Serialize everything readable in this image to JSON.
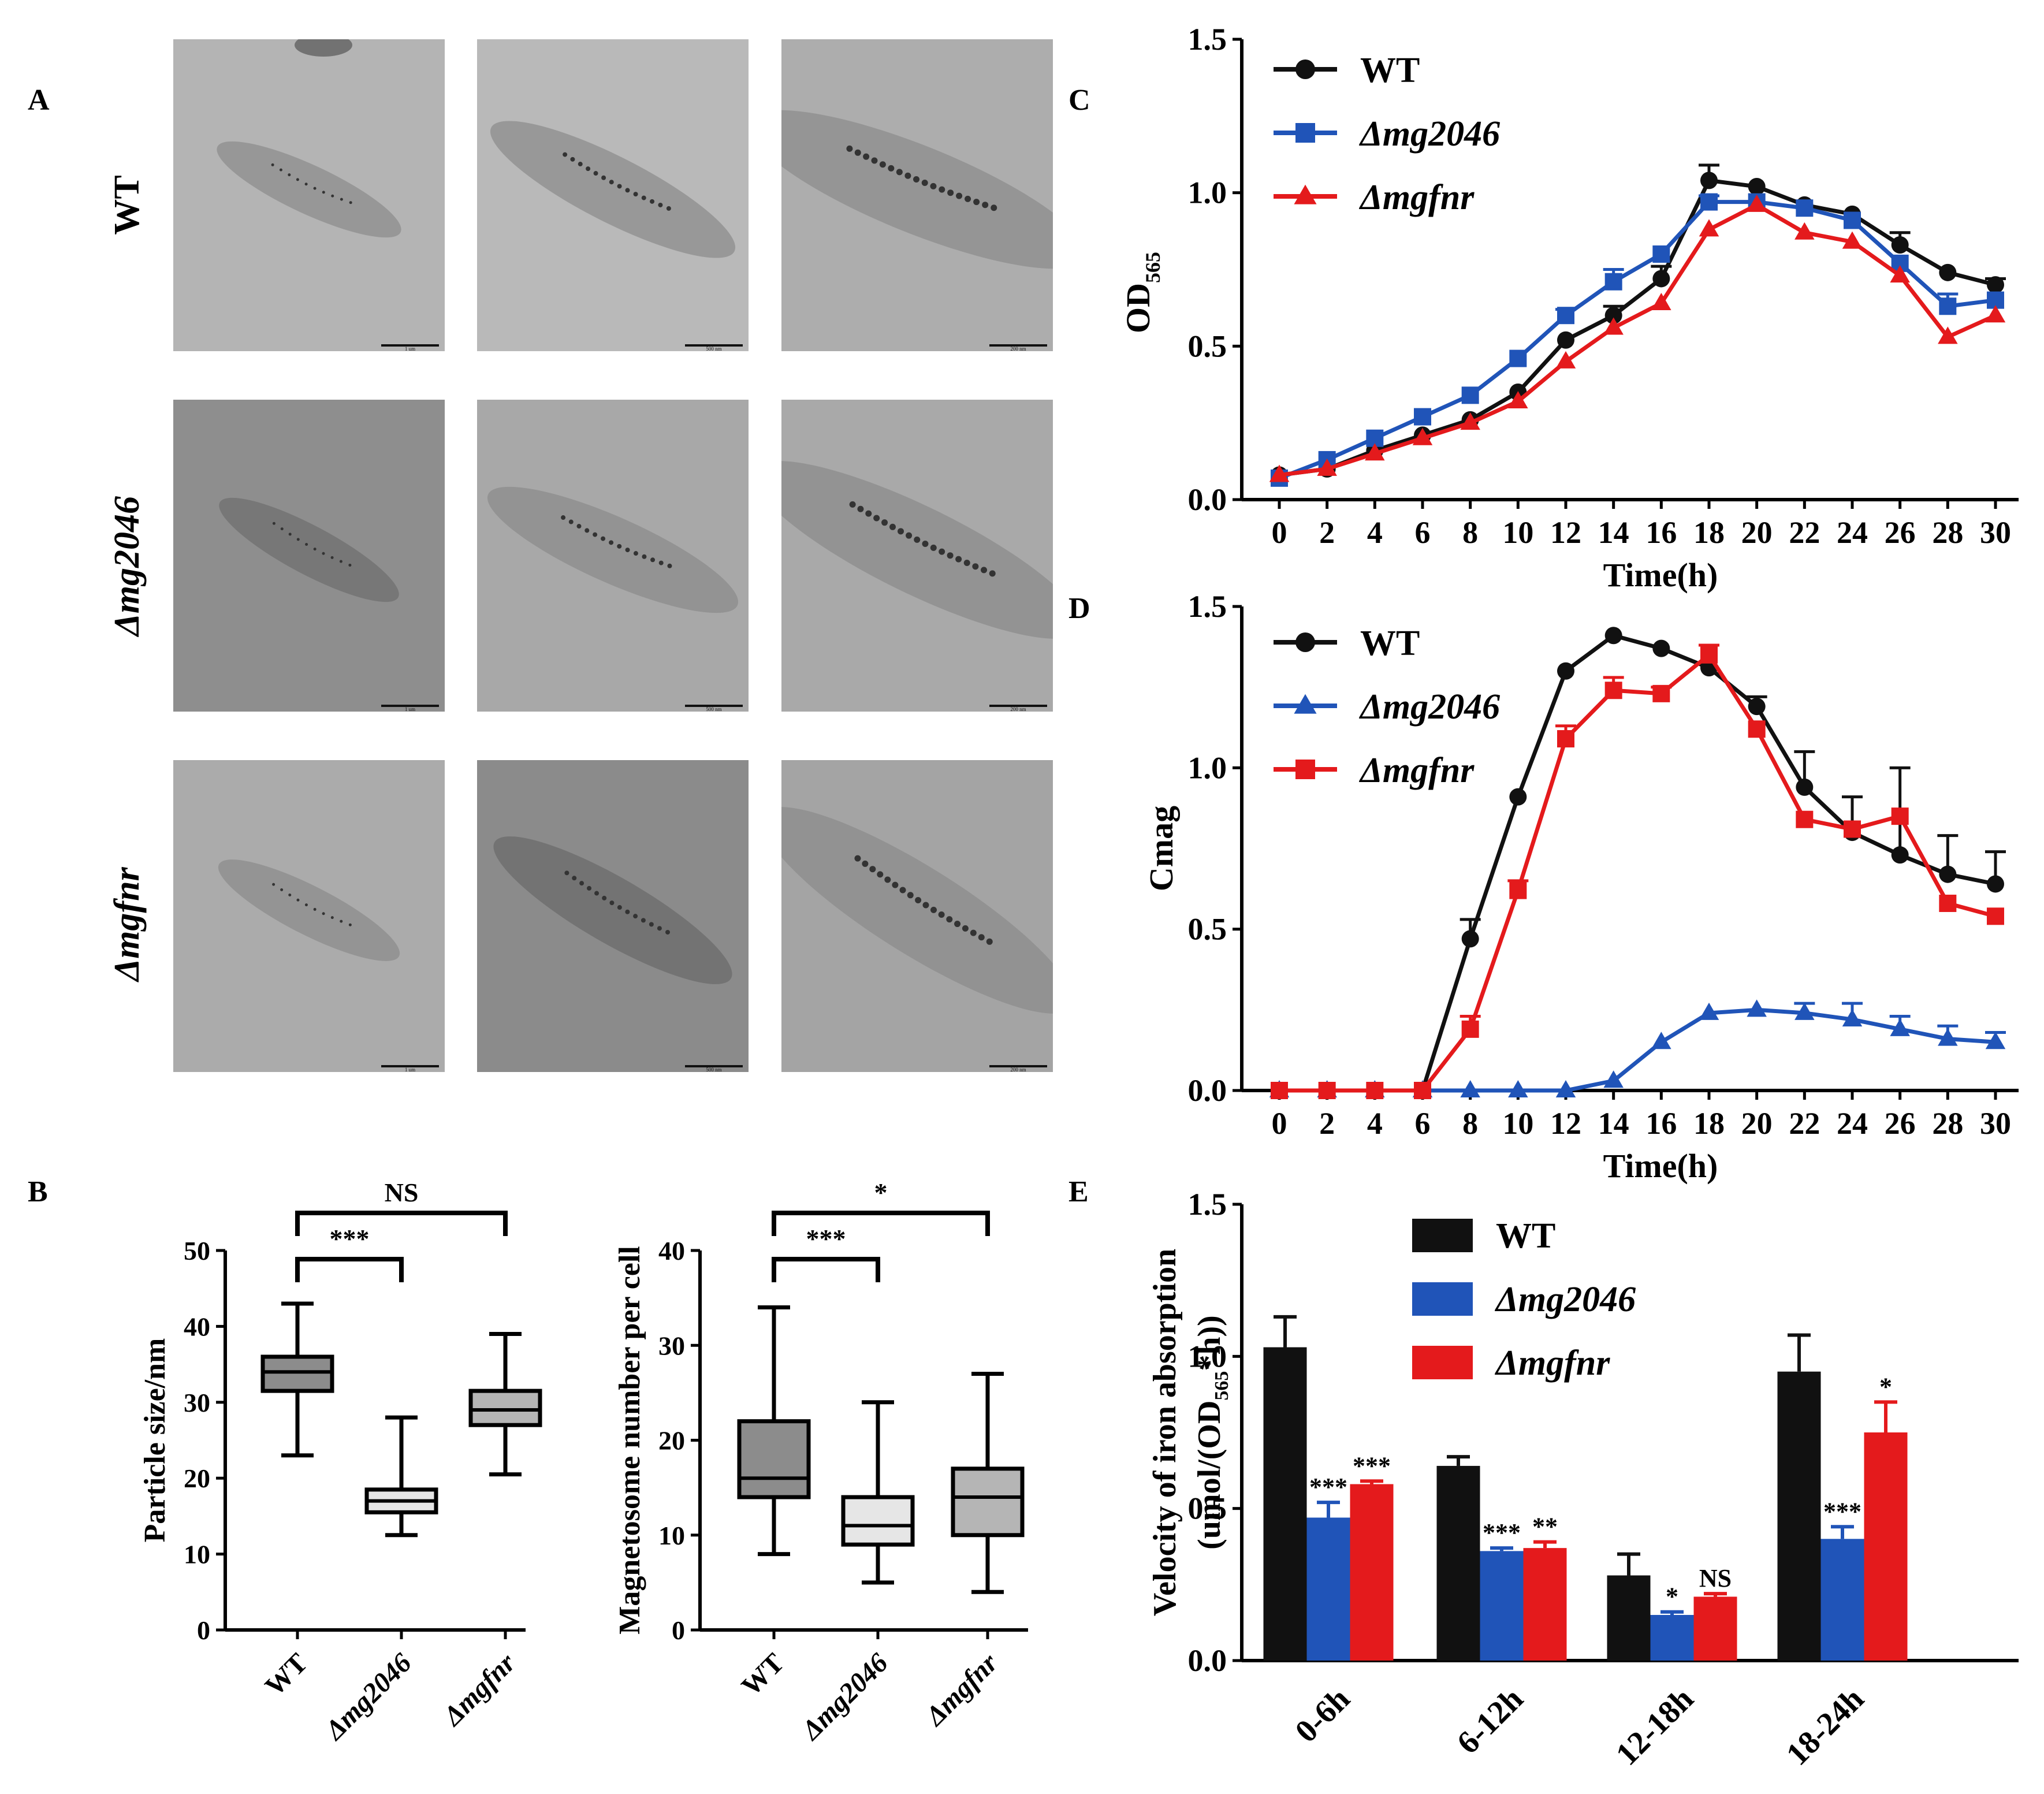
{
  "figure": {
    "panel_labels": {
      "A": "A",
      "B": "B",
      "C": "C",
      "D": "D",
      "E": "E"
    },
    "panelA": {
      "row_labels": [
        "WT",
        "Δmg2046",
        "Δmgfnr"
      ],
      "scale_bars": [
        "1 um",
        "500 nm",
        "200 nm"
      ]
    }
  },
  "colors": {
    "wt": "#111111",
    "mg2046": "#2054b8",
    "mgfnr": "#e41a1c"
  },
  "chart_data": [
    {
      "id": "B1",
      "type": "box",
      "ylabel": "Particle size/nm",
      "ylim": [
        0,
        50
      ],
      "yticks": [
        0,
        10,
        20,
        30,
        40,
        50
      ],
      "categories": [
        "WT",
        "Δmg2046",
        "Δmgfnr"
      ],
      "boxes": [
        {
          "min": 23,
          "q1": 31.5,
          "median": 34,
          "q3": 36,
          "max": 43,
          "fill": "#8c8c8c"
        },
        {
          "min": 12.5,
          "q1": 15.5,
          "median": 17,
          "q3": 18.5,
          "max": 28,
          "fill": "#e6e6e6"
        },
        {
          "min": 20.5,
          "q1": 27,
          "median": 29,
          "q3": 31.5,
          "max": 39,
          "fill": "#b5b5b5"
        }
      ],
      "significance": [
        {
          "from": 0,
          "to": 1,
          "label": "***"
        },
        {
          "from": 0,
          "to": 2,
          "label": "NS"
        }
      ]
    },
    {
      "id": "B2",
      "type": "box",
      "ylabel": "Magnetosome number per cell",
      "ylim": [
        0,
        40
      ],
      "yticks": [
        0,
        10,
        20,
        30,
        40
      ],
      "categories": [
        "WT",
        "Δmg2046",
        "Δmgfnr"
      ],
      "boxes": [
        {
          "min": 8,
          "q1": 14,
          "median": 16,
          "q3": 22,
          "max": 34,
          "fill": "#8c8c8c"
        },
        {
          "min": 5,
          "q1": 9,
          "median": 11,
          "q3": 14,
          "max": 24,
          "fill": "#e6e6e6"
        },
        {
          "min": 4,
          "q1": 10,
          "median": 14,
          "q3": 17,
          "max": 27,
          "fill": "#b5b5b5"
        }
      ],
      "significance": [
        {
          "from": 0,
          "to": 1,
          "label": "***"
        },
        {
          "from": 0,
          "to": 2,
          "label": "*"
        }
      ]
    },
    {
      "id": "C",
      "type": "line",
      "ylabel_main": "OD",
      "ylabel_sub": "565",
      "xlabel": "Time(h)",
      "x": [
        0,
        2,
        4,
        6,
        8,
        10,
        12,
        14,
        16,
        18,
        20,
        22,
        24,
        26,
        28,
        30
      ],
      "ylim": [
        0,
        1.5
      ],
      "yticks": [
        "0.0",
        "0.5",
        "1.0",
        "1.5"
      ],
      "series": [
        {
          "name": "WT",
          "marker": "circle",
          "values": [
            0.08,
            0.1,
            0.16,
            0.21,
            0.26,
            0.35,
            0.52,
            0.6,
            0.72,
            1.04,
            1.02,
            0.96,
            0.93,
            0.83,
            0.74,
            0.7
          ],
          "err": [
            0,
            0,
            0,
            0,
            0,
            0,
            0,
            0.03,
            0.04,
            0.05,
            0,
            0,
            0,
            0.04,
            0,
            0.02
          ]
        },
        {
          "name": "Δmg2046",
          "marker": "square",
          "values": [
            0.07,
            0.13,
            0.2,
            0.27,
            0.34,
            0.46,
            0.6,
            0.71,
            0.8,
            0.97,
            0.97,
            0.95,
            0.91,
            0.77,
            0.63,
            0.65
          ],
          "err": [
            0,
            0,
            0,
            0,
            0,
            0,
            0.02,
            0.04,
            0,
            0.02,
            0,
            0,
            0,
            0,
            0.04,
            0
          ]
        },
        {
          "name": "Δmgfnr",
          "marker": "triangle",
          "values": [
            0.08,
            0.1,
            0.15,
            0.2,
            0.25,
            0.32,
            0.45,
            0.56,
            0.64,
            0.88,
            0.96,
            0.87,
            0.84,
            0.73,
            0.53,
            0.6
          ],
          "err": [
            0,
            0,
            0,
            0,
            0,
            0,
            0,
            0,
            0,
            0,
            0,
            0,
            0,
            0,
            0,
            0
          ]
        }
      ]
    },
    {
      "id": "D",
      "type": "line",
      "ylabel": "Cmag",
      "xlabel": "Time(h)",
      "x": [
        0,
        2,
        4,
        6,
        8,
        10,
        12,
        14,
        16,
        18,
        20,
        22,
        24,
        26,
        28,
        30
      ],
      "ylim": [
        0,
        1.5
      ],
      "yticks": [
        "0.0",
        "0.5",
        "1.0",
        "1.5"
      ],
      "series": [
        {
          "name": "WT",
          "marker": "circle",
          "values": [
            0,
            0,
            0,
            0,
            0.47,
            0.91,
            1.3,
            1.41,
            1.37,
            1.31,
            1.19,
            0.94,
            0.8,
            0.73,
            0.67,
            0.64
          ],
          "err": [
            0,
            0,
            0,
            0,
            0.06,
            0,
            0,
            0,
            0,
            0,
            0.03,
            0.11,
            0.11,
            0.27,
            0.12,
            0.1
          ]
        },
        {
          "name": "Δmg2046",
          "marker": "triangle",
          "values": [
            0,
            0,
            0,
            0,
            0,
            0,
            0,
            0.03,
            0.15,
            0.24,
            0.25,
            0.24,
            0.22,
            0.19,
            0.16,
            0.15
          ],
          "err": [
            0,
            0,
            0,
            0,
            0,
            0,
            0,
            0,
            0,
            0,
            0,
            0.03,
            0.05,
            0.04,
            0.04,
            0.03
          ]
        },
        {
          "name": "Δmgfnr",
          "marker": "square",
          "values": [
            0,
            0,
            0,
            0,
            0.19,
            0.62,
            1.09,
            1.24,
            1.23,
            1.35,
            1.12,
            0.84,
            0.81,
            0.85,
            0.58,
            0.54
          ],
          "err": [
            0,
            0,
            0,
            0,
            0.04,
            0.03,
            0.04,
            0.04,
            0.02,
            0.03,
            0,
            0,
            0,
            0,
            0,
            0
          ]
        }
      ]
    },
    {
      "id": "E",
      "type": "bar",
      "ylabel_line1": "Velocity of iron absorption",
      "ylabel_line2_pre": "(umol/(OD",
      "ylabel_line2_sub": "565",
      "ylabel_line2_post": "*h))",
      "categories": [
        "0-6h",
        "6-12h",
        "12-18h",
        "18-24h"
      ],
      "ylim": [
        0,
        1.5
      ],
      "yticks": [
        "0.0",
        "0.5",
        "1.0",
        "1.5"
      ],
      "series": [
        {
          "name": "WT",
          "values": [
            1.03,
            0.64,
            0.28,
            0.95
          ],
          "err": [
            0.1,
            0.03,
            0.07,
            0.12
          ],
          "sig": [
            "",
            "",
            "",
            ""
          ]
        },
        {
          "name": "Δmg2046",
          "values": [
            0.47,
            0.36,
            0.15,
            0.4
          ],
          "err": [
            0.05,
            0.01,
            0.01,
            0.04
          ],
          "sig": [
            "***",
            "***",
            "*",
            "***"
          ]
        },
        {
          "name": "Δmgfnr",
          "values": [
            0.58,
            0.37,
            0.21,
            0.75
          ],
          "err": [
            0.01,
            0.02,
            0.01,
            0.1
          ],
          "sig": [
            "***",
            "**",
            "NS",
            "*"
          ]
        }
      ]
    }
  ]
}
